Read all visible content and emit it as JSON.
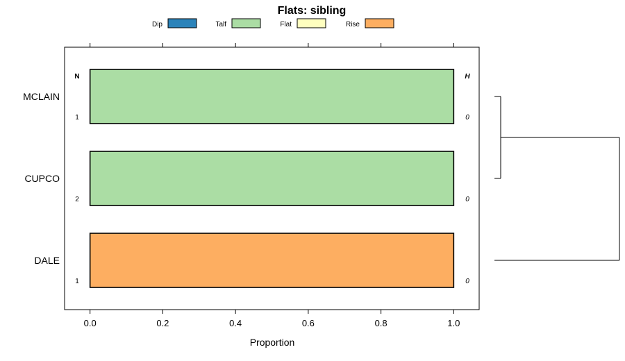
{
  "chart_data": {
    "type": "bar",
    "orientation": "horizontal",
    "stacked": true,
    "title": "Flats: sibling",
    "xlabel": "Proportion",
    "xlim": [
      -0.07,
      1.07
    ],
    "xticks": [
      "0.0",
      "0.2",
      "0.4",
      "0.6",
      "0.8",
      "1.0"
    ],
    "xtick_values": [
      0,
      0.2,
      0.4,
      0.6,
      0.8,
      1.0
    ],
    "legend": {
      "position": "top",
      "entries": [
        {
          "name": "Dip",
          "color": "#2b83ba"
        },
        {
          "name": "Talf",
          "color": "#abdda4"
        },
        {
          "name": "Flat",
          "color": "#ffffbf"
        },
        {
          "name": "Rise",
          "color": "#fdae61"
        }
      ]
    },
    "categories": [
      "MCLAIN",
      "CUPCO",
      "DALE"
    ],
    "series": [
      {
        "name": "Dip",
        "values": [
          0,
          0,
          0
        ]
      },
      {
        "name": "Talf",
        "values": [
          1,
          1,
          0
        ]
      },
      {
        "name": "Flat",
        "values": [
          0,
          0,
          0
        ]
      },
      {
        "name": "Rise",
        "values": [
          0,
          0,
          1
        ]
      }
    ],
    "n_header": "N",
    "n_values": [
      "1",
      "2",
      "1"
    ],
    "h_header": "H",
    "h_values": [
      "0",
      "0",
      "0"
    ],
    "dendrogram": {
      "merges": [
        {
          "left": "MCLAIN",
          "right": "CUPCO",
          "height": 0.05
        },
        {
          "left": "cluster1",
          "right": "DALE",
          "height": 1.0
        }
      ]
    }
  }
}
